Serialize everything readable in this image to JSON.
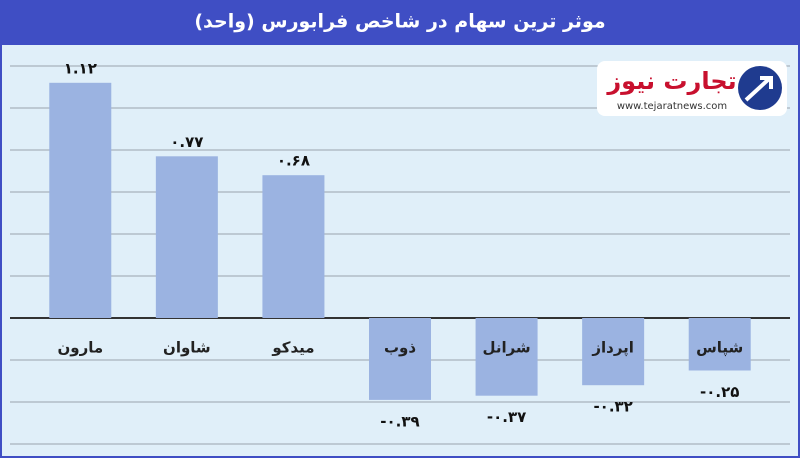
{
  "chart_data": {
    "type": "bar",
    "title": "موثر ترین سهام در شاخص فرابورس (واحد)",
    "categories": [
      "مارون",
      "شاوان",
      "میدکو",
      "ذوب",
      "شرانل",
      "اپرداز",
      "شپاس"
    ],
    "values": [
      1.12,
      0.77,
      0.68,
      -0.39,
      -0.37,
      -0.32,
      -0.25
    ],
    "value_labels": [
      "۱.۱۲",
      "۰.۷۷",
      "۰.۶۸",
      "-۰.۳۹",
      "-۰.۳۷",
      "-۰.۳۲",
      "-۰.۲۵"
    ],
    "color": "#9bb3e1",
    "ylim": [
      -0.6,
      1.2
    ],
    "yticks": [
      -0.6,
      -0.4,
      -0.2,
      0,
      0.2,
      0.4,
      0.6,
      0.8,
      1,
      1.2
    ],
    "grid": true
  },
  "logo": {
    "name": "تجارت نیوز",
    "url": "www.tejaratnews.com"
  }
}
